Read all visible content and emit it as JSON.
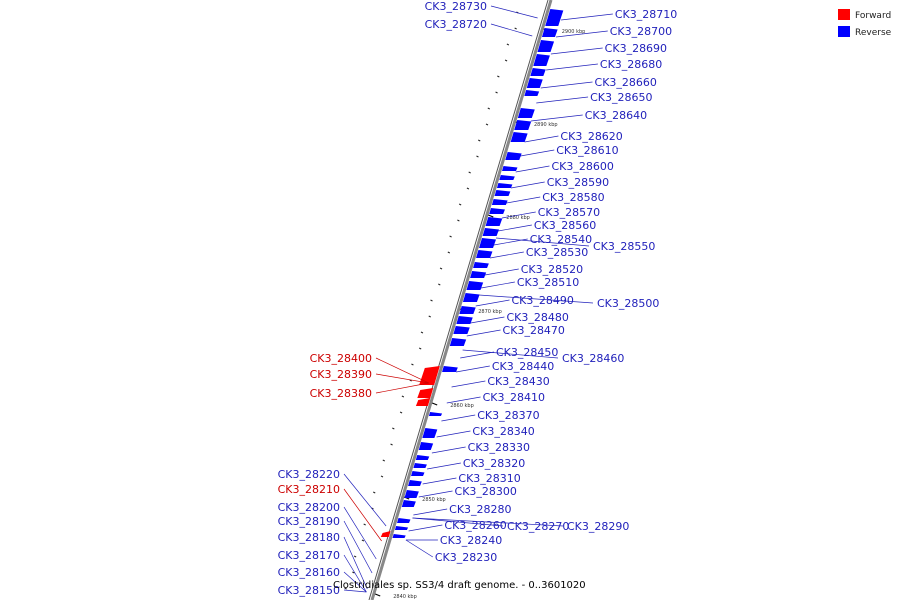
{
  "diagram": {
    "caption": "Clostridiales sp. SS3/4 draft genome. - 0..3601020",
    "legend": [
      {
        "label": "Forward",
        "color": "#ff0000"
      },
      {
        "label": "Reverse",
        "color": "#0000ff"
      }
    ],
    "colors": {
      "forward": "#ff0000",
      "reverse": "#0000ff",
      "backbone": "#888888",
      "forward_label": "#cc0000",
      "reverse_label": "#2222bb"
    },
    "ticks": [
      "2900 kbp",
      "2890 kbp",
      "2880 kbp",
      "2870 kbp",
      "2860 kbp",
      "2850 kbp",
      "2840 kbp"
    ],
    "genes_right": [
      "CK3_28710",
      "CK3_28700",
      "CK3_28690",
      "CK3_28680",
      "CK3_28660",
      "CK3_28650",
      "CK3_28640",
      "CK3_28620",
      "CK3_28610",
      "CK3_28600",
      "CK3_28590",
      "CK3_28580",
      "CK3_28570",
      "CK3_28560",
      "CK3_28540",
      "CK3_28530",
      "CK3_28520",
      "CK3_28510",
      "CK3_28490",
      "CK3_28480",
      "CK3_28470",
      "CK3_28450",
      "CK3_28440",
      "CK3_28430",
      "CK3_28410",
      "CK3_28370",
      "CK3_28340",
      "CK3_28330",
      "CK3_28320",
      "CK3_28310",
      "CK3_28300",
      "CK3_28280",
      "CK3_28260",
      "CK3_28240",
      "CK3_28230"
    ],
    "genes_right_far": [
      "CK3_28550",
      "CK3_28500",
      "CK3_28460",
      "CK3_28270",
      "CK3_28290"
    ],
    "genes_left": [
      {
        "name": "CK3_28730",
        "strand": "reverse"
      },
      {
        "name": "CK3_28720",
        "strand": "reverse"
      },
      {
        "name": "CK3_28400",
        "strand": "forward"
      },
      {
        "name": "CK3_28390",
        "strand": "forward"
      },
      {
        "name": "CK3_28380",
        "strand": "forward"
      },
      {
        "name": "CK3_28220",
        "strand": "reverse"
      },
      {
        "name": "CK3_28210",
        "strand": "forward"
      },
      {
        "name": "CK3_28200",
        "strand": "reverse"
      },
      {
        "name": "CK3_28190",
        "strand": "reverse"
      },
      {
        "name": "CK3_28180",
        "strand": "reverse"
      },
      {
        "name": "CK3_28170",
        "strand": "reverse"
      },
      {
        "name": "CK3_28160",
        "strand": "reverse"
      },
      {
        "name": "CK3_28150",
        "strand": "reverse"
      }
    ]
  }
}
